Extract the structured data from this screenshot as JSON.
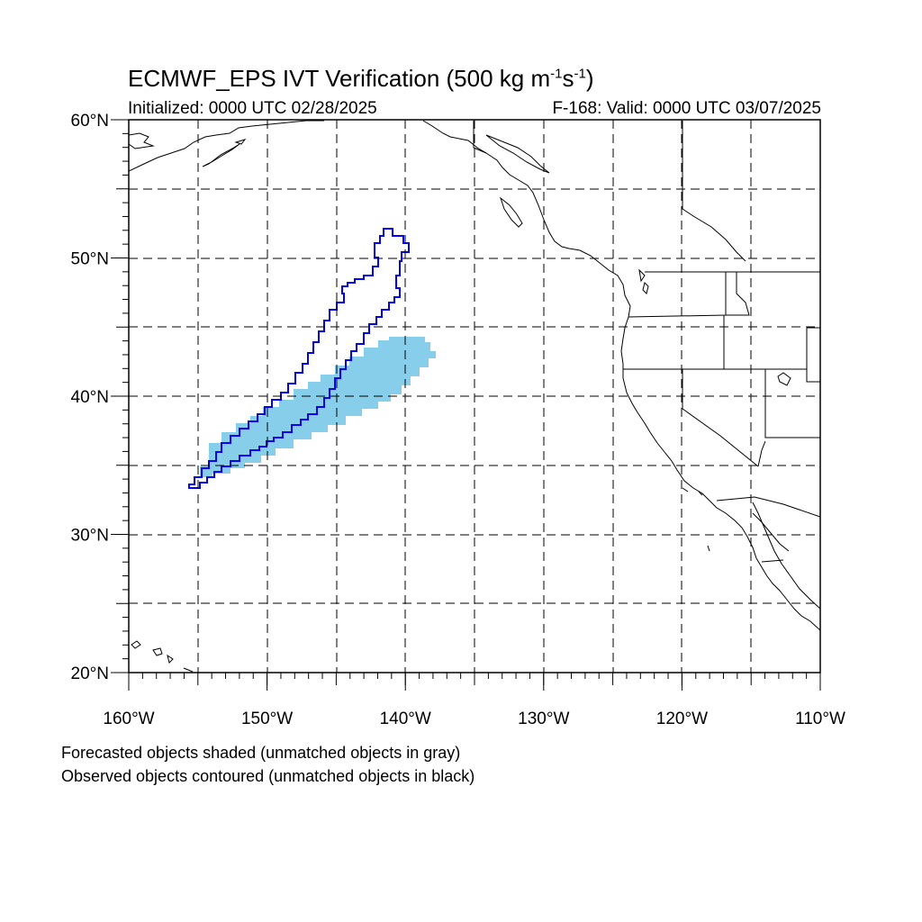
{
  "title": {
    "main": "ECMWF_EPS IVT Verification (500 kg m",
    "sup1": "-1",
    "mid": "s",
    "sup2": "-1",
    "end": ")"
  },
  "subtitle": {
    "left": "Initialized: 0000 UTC 02/28/2025",
    "right": "F-168: Valid: 0000 UTC 03/07/2025"
  },
  "lat_ticks": [
    {
      "value": 60,
      "label": "60°N"
    },
    {
      "value": 50,
      "label": "50°N"
    },
    {
      "value": 40,
      "label": "40°N"
    },
    {
      "value": 30,
      "label": "30°N"
    },
    {
      "value": 20,
      "label": "20°N"
    }
  ],
  "lon_ticks": [
    {
      "value": -160,
      "label": "160°W"
    },
    {
      "value": -150,
      "label": "150°W"
    },
    {
      "value": -140,
      "label": "140°W"
    },
    {
      "value": -130,
      "label": "130°W"
    },
    {
      "value": -120,
      "label": "120°W"
    },
    {
      "value": -110,
      "label": "110°W"
    }
  ],
  "map_extent": {
    "lon": [
      -160,
      -110
    ],
    "lat": [
      20,
      60
    ],
    "grid_spacing_deg": 5
  },
  "colors": {
    "forecast_fill": "#87ceeb",
    "observed_contour": "#0000ff"
  },
  "legend": {
    "forecast": "Forecasted objects shaded (unmatched objects in gray)",
    "observed": "Observed objects contoured (unmatched objects in black)"
  }
}
